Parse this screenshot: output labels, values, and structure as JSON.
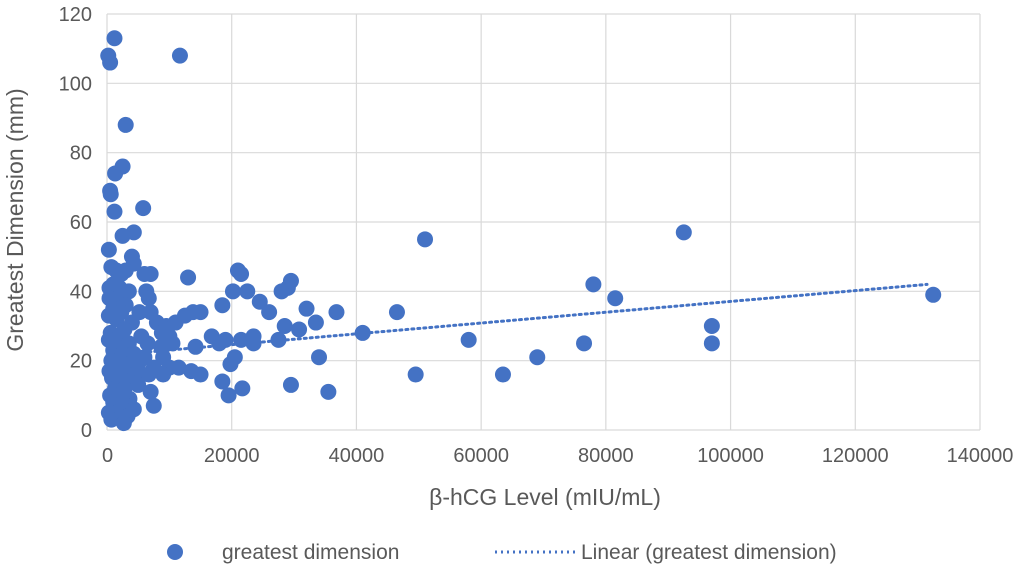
{
  "chart_data": {
    "type": "scatter",
    "title": "",
    "xlabel": "β-hCG Level (mIU/mL)",
    "ylabel": "Greatest Dimension (mm)",
    "xlim": [
      0,
      140000
    ],
    "ylim": [
      0,
      120
    ],
    "x_ticks": [
      "0",
      "20000",
      "40000",
      "60000",
      "80000",
      "100000",
      "120000",
      "140000"
    ],
    "y_ticks": [
      "0",
      "20",
      "40",
      "60",
      "80",
      "100",
      "120"
    ],
    "grid": true,
    "legend_position": "bottom",
    "colors": {
      "points": "#4472c4",
      "trendline": "#4472c4",
      "grid": "#d9d9d9",
      "text": "#595959"
    },
    "series": [
      {
        "name": "greatest dimension",
        "kind": "scatter",
        "points": [
          [
            200,
            108
          ],
          [
            500,
            106
          ],
          [
            1200,
            113
          ],
          [
            11700,
            108
          ],
          [
            3000,
            88
          ],
          [
            2500,
            76
          ],
          [
            1300,
            74
          ],
          [
            500,
            69
          ],
          [
            600,
            68
          ],
          [
            1200,
            63
          ],
          [
            5800,
            64
          ],
          [
            4300,
            57
          ],
          [
            2500,
            56
          ],
          [
            300,
            52
          ],
          [
            4000,
            50
          ],
          [
            4300,
            48
          ],
          [
            700,
            47
          ],
          [
            1500,
            46
          ],
          [
            2300,
            45
          ],
          [
            3000,
            46
          ],
          [
            6000,
            45
          ],
          [
            7000,
            45
          ],
          [
            1000,
            42
          ],
          [
            400,
            41
          ],
          [
            2000,
            41
          ],
          [
            3500,
            40
          ],
          [
            6300,
            40
          ],
          [
            6700,
            38
          ],
          [
            400,
            38
          ],
          [
            1800,
            37
          ],
          [
            3000,
            36
          ],
          [
            1000,
            35
          ],
          [
            2300,
            34
          ],
          [
            5200,
            34
          ],
          [
            7000,
            34
          ],
          [
            300,
            33
          ],
          [
            1500,
            32
          ],
          [
            4000,
            31
          ],
          [
            8000,
            31
          ],
          [
            9500,
            30
          ],
          [
            11000,
            31
          ],
          [
            2800,
            29
          ],
          [
            600,
            28
          ],
          [
            5500,
            27
          ],
          [
            10000,
            27
          ],
          [
            300,
            26
          ],
          [
            1500,
            26
          ],
          [
            3500,
            25
          ],
          [
            6500,
            25
          ],
          [
            8700,
            24
          ],
          [
            1000,
            23
          ],
          [
            2500,
            22
          ],
          [
            4300,
            22
          ],
          [
            6000,
            21
          ],
          [
            9000,
            21
          ],
          [
            700,
            20
          ],
          [
            2000,
            20
          ],
          [
            3700,
            19
          ],
          [
            5000,
            19
          ],
          [
            7500,
            18
          ],
          [
            10000,
            18
          ],
          [
            11500,
            18
          ],
          [
            400,
            17
          ],
          [
            1500,
            17
          ],
          [
            3000,
            16
          ],
          [
            4500,
            16
          ],
          [
            6700,
            16
          ],
          [
            9000,
            16
          ],
          [
            800,
            15
          ],
          [
            2300,
            14
          ],
          [
            3500,
            14
          ],
          [
            5000,
            13
          ],
          [
            1300,
            12
          ],
          [
            2800,
            12
          ],
          [
            500,
            10
          ],
          [
            2000,
            10
          ],
          [
            3600,
            9
          ],
          [
            1000,
            8
          ],
          [
            2500,
            8
          ],
          [
            4300,
            6
          ],
          [
            300,
            5
          ],
          [
            1700,
            5
          ],
          [
            3300,
            4
          ],
          [
            700,
            3
          ],
          [
            2700,
            2
          ],
          [
            7500,
            7
          ],
          [
            7000,
            11
          ],
          [
            8800,
            28
          ],
          [
            9500,
            29
          ],
          [
            10500,
            25
          ],
          [
            13000,
            44
          ],
          [
            12500,
            33
          ],
          [
            13800,
            34
          ],
          [
            15000,
            34
          ],
          [
            16800,
            27
          ],
          [
            14200,
            24
          ],
          [
            13500,
            17
          ],
          [
            15000,
            16
          ],
          [
            18000,
            25
          ],
          [
            18500,
            36
          ],
          [
            18500,
            14
          ],
          [
            19000,
            26
          ],
          [
            19500,
            10
          ],
          [
            19800,
            19
          ],
          [
            20200,
            40
          ],
          [
            20500,
            21
          ],
          [
            21000,
            46
          ],
          [
            21500,
            45
          ],
          [
            21500,
            26
          ],
          [
            21700,
            12
          ],
          [
            22500,
            40
          ],
          [
            23500,
            25
          ],
          [
            23500,
            27
          ],
          [
            24500,
            37
          ],
          [
            26000,
            34
          ],
          [
            27500,
            26
          ],
          [
            28000,
            40
          ],
          [
            28500,
            30
          ],
          [
            29000,
            41
          ],
          [
            29500,
            43
          ],
          [
            29500,
            13
          ],
          [
            30800,
            29
          ],
          [
            32000,
            35
          ],
          [
            33500,
            31
          ],
          [
            34000,
            21
          ],
          [
            35500,
            11
          ],
          [
            36800,
            34
          ],
          [
            41000,
            28
          ],
          [
            46500,
            34
          ],
          [
            49500,
            16
          ],
          [
            51000,
            55
          ],
          [
            58000,
            26
          ],
          [
            63500,
            16
          ],
          [
            69000,
            21
          ],
          [
            76500,
            25
          ],
          [
            78000,
            42
          ],
          [
            81500,
            38
          ],
          [
            92500,
            57
          ],
          [
            97000,
            30
          ],
          [
            97000,
            25
          ],
          [
            132500,
            39
          ]
        ]
      }
    ],
    "trendline": {
      "name": "Linear (greatest dimension)",
      "kind": "linear",
      "start": [
        0,
        21.5
      ],
      "end": [
        131500,
        42
      ]
    }
  }
}
